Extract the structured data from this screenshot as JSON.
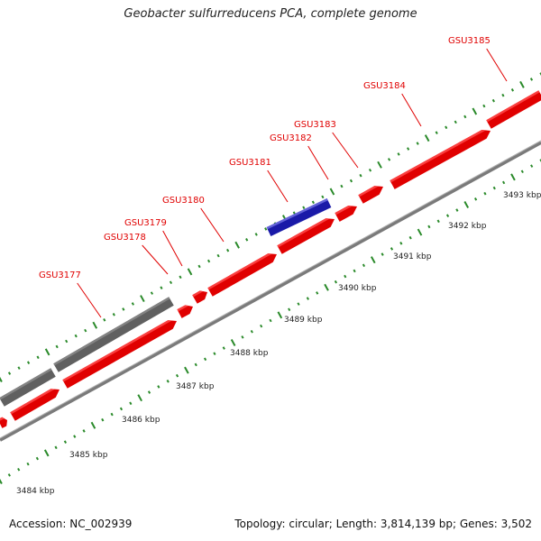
{
  "title": "Geobacter sulfurreducens PCA, complete genome",
  "accession": "Accession: NC_002939",
  "topology": "Topology: circular; Length: 3,814,139 bp; Genes: 3,502",
  "colors": {
    "forward_gene": "#e00000",
    "forward_gene_light": "#ff4a4a",
    "reverse_gene": "#606060",
    "reverse_gene_light": "#8a8a8a",
    "highlight_gene": "#1a1aa8",
    "highlight_gene_light": "#7070e0",
    "backbone": "#7a7a7a",
    "ticks": "#2a8a2a",
    "label": "#e00000"
  },
  "kbp_labels": [
    "3484 kbp",
    "3485 kbp",
    "3486 kbp",
    "3487 kbp",
    "3488 kbp",
    "3489 kbp",
    "3490 kbp",
    "3491 kbp",
    "3492 kbp",
    "3493 kbp"
  ],
  "gene_labels": [
    "GSU3177",
    "GSU3178",
    "GSU3179",
    "GSU3180",
    "GSU3181",
    "GSU3182",
    "GSU3183",
    "GSU3184",
    "GSU3185"
  ]
}
